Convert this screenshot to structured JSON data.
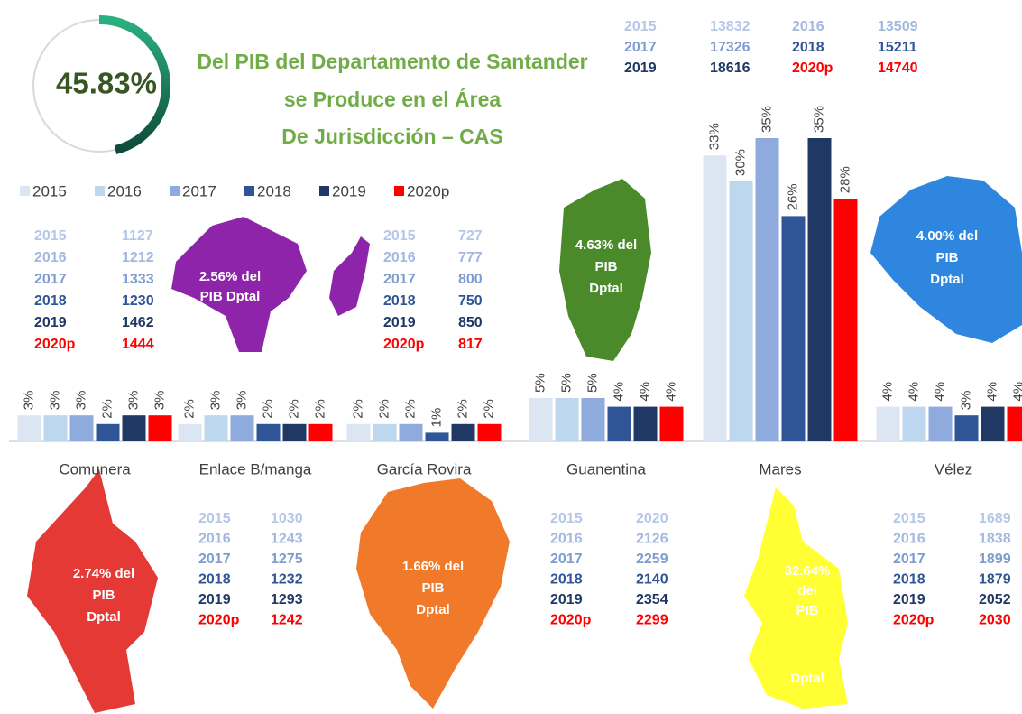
{
  "headline": {
    "percent": "45.83%",
    "lines": [
      "Del PIB del Departamento de Santander",
      "se Produce en el Área",
      "De Jurisdicción – CAS"
    ]
  },
  "chart_data": {
    "type": "bar",
    "categories": [
      "Comunera",
      "Enlace B/manga",
      "García Rovira",
      "Guanentina",
      "Mares",
      "Vélez"
    ],
    "series": [
      {
        "name": "2015",
        "color": "#dce6f2",
        "values": [
          3,
          2,
          2,
          5,
          33,
          4
        ],
        "value_labels": [
          "3%",
          "2%",
          "2%",
          "5%",
          "33%",
          "4%"
        ]
      },
      {
        "name": "2016",
        "color": "#bdd7ee",
        "values": [
          3,
          3,
          2,
          5,
          30,
          4
        ],
        "value_labels": [
          "3%",
          "3%",
          "2%",
          "5%",
          "30%",
          "4%"
        ]
      },
      {
        "name": "2017",
        "color": "#8faadc",
        "values": [
          3,
          3,
          2,
          5,
          35,
          4
        ],
        "value_labels": [
          "3%",
          "3%",
          "2%",
          "5%",
          "35%",
          "4%"
        ]
      },
      {
        "name": "2018",
        "color": "#2f5597",
        "values": [
          2,
          2,
          1,
          4,
          26,
          3
        ],
        "value_labels": [
          "2%",
          "2%",
          "1%",
          "4%",
          "26%",
          "3%"
        ]
      },
      {
        "name": "2019",
        "color": "#1f3864",
        "values": [
          3,
          2,
          2,
          4,
          35,
          4
        ],
        "value_labels": [
          "3%",
          "2%",
          "2%",
          "4%",
          "35%",
          "4%"
        ]
      },
      {
        "name": "2020p",
        "color": "#ff0000",
        "values": [
          3,
          2,
          2,
          4,
          28,
          4
        ],
        "value_labels": [
          "3%",
          "2%",
          "2%",
          "4%",
          "28%",
          "4%"
        ]
      }
    ],
    "legend": "top-left"
  },
  "table_colors": [
    "#b4c7e7",
    "#a2b8de",
    "#7f9ccf",
    "#2f5597",
    "#1f3864",
    "#ff0000"
  ],
  "tables": [
    {
      "rows": [
        {
          "year": "2015",
          "value": 1127
        },
        {
          "year": "2016",
          "value": 1212
        },
        {
          "year": "2017",
          "value": 1333
        },
        {
          "year": "2018",
          "value": 1230
        },
        {
          "year": "2019",
          "value": 1462
        },
        {
          "year": "2020p",
          "value": 1444
        }
      ]
    },
    {
      "rows": [
        {
          "year": "2015",
          "value": 1030
        },
        {
          "year": "2016",
          "value": 1243
        },
        {
          "year": "2017",
          "value": 1275
        },
        {
          "year": "2018",
          "value": 1232
        },
        {
          "year": "2019",
          "value": 1293
        },
        {
          "year": "2020p",
          "value": 1242
        }
      ]
    },
    {
      "rows": [
        {
          "year": "2015",
          "value": 727
        },
        {
          "year": "2016",
          "value": 777
        },
        {
          "year": "2017",
          "value": 800
        },
        {
          "year": "2018",
          "value": 750
        },
        {
          "year": "2019",
          "value": 850
        },
        {
          "year": "2020p",
          "value": 817
        }
      ]
    },
    {
      "rows": [
        {
          "year": "2015",
          "value": 2020
        },
        {
          "year": "2016",
          "value": 2126
        },
        {
          "year": "2017",
          "value": 2259
        },
        {
          "year": "2018",
          "value": 2140
        },
        {
          "year": "2019",
          "value": 2354
        },
        {
          "year": "2020p",
          "value": 2299
        }
      ]
    },
    {
      "rows": [
        {
          "year": "2015",
          "value": 13832
        },
        {
          "year": "2016",
          "value": 13509
        },
        {
          "year": "2017",
          "value": 17326
        },
        {
          "year": "2018",
          "value": 15211
        },
        {
          "year": "2019",
          "value": 18616
        },
        {
          "year": "2020p",
          "value": 14740
        }
      ]
    },
    {
      "rows": [
        {
          "year": "2015",
          "value": 1689
        },
        {
          "year": "2016",
          "value": 1838
        },
        {
          "year": "2017",
          "value": 1899
        },
        {
          "year": "2018",
          "value": 1879
        },
        {
          "year": "2019",
          "value": 2052
        },
        {
          "year": "2020p",
          "value": 2030
        }
      ]
    }
  ],
  "maps": [
    {
      "lines": [
        "2.74% del",
        "PIB",
        "Dptal"
      ]
    },
    {
      "lines": [
        "2.56% del",
        "PIB Dptal"
      ]
    },
    {
      "lines": [
        "1.66% del",
        "PIB",
        "Dptal"
      ]
    },
    {
      "lines": [
        "4.63% del",
        "PIB",
        "Dptal"
      ]
    },
    {
      "lines": [
        "32.64%",
        "del",
        "PIB",
        "Dptal"
      ]
    },
    {
      "lines": [
        "4.00% del",
        "PIB",
        "Dptal"
      ]
    }
  ]
}
